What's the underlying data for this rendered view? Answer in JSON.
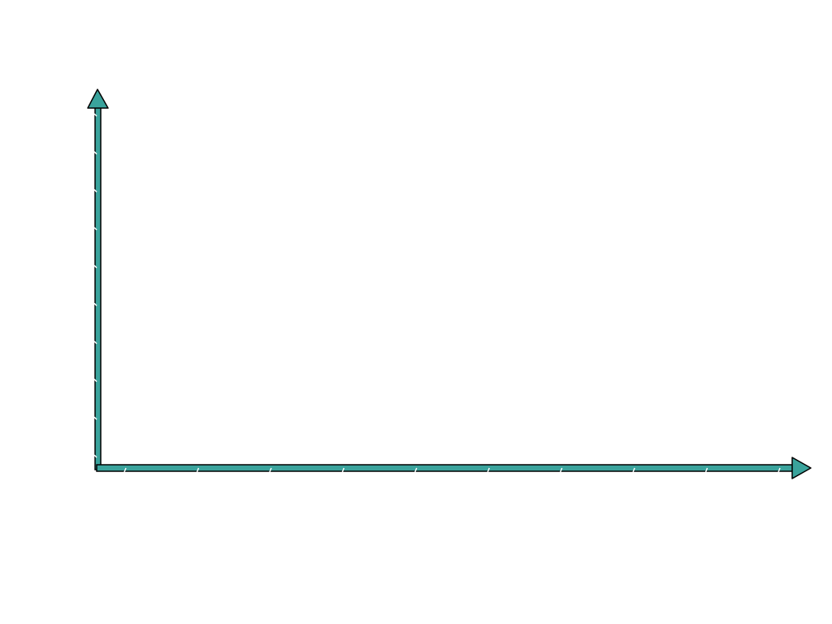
{
  "diagram": {
    "type": "blank-axes",
    "axes": {
      "x_axis": {
        "label": "",
        "direction": "right",
        "arrowhead": true
      },
      "y_axis": {
        "label": "",
        "direction": "up",
        "arrowhead": true
      }
    },
    "style": {
      "axis_fill": "#3aa39c",
      "axis_outline": "#000000",
      "tick_color": "#ffffff",
      "background": "#ffffff"
    },
    "ticks": {
      "x_count": 10,
      "y_count": 10
    }
  }
}
